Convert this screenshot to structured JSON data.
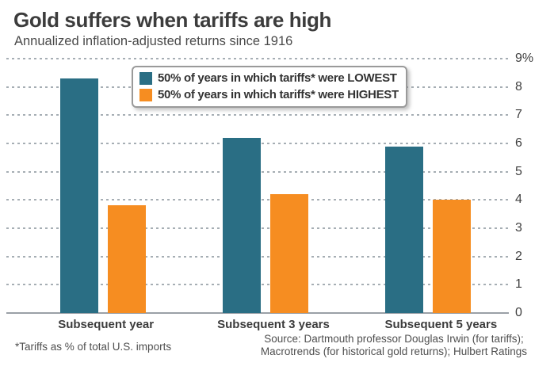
{
  "header": {
    "title": "Gold suffers when tariffs are high",
    "subtitle": "Annualized inflation-adjusted returns since 1916"
  },
  "chart_data": {
    "type": "bar",
    "title": "Gold suffers when tariffs are high",
    "subtitle": "Annualized inflation-adjusted returns since 1916",
    "categories": [
      "Subsequent year",
      "Subsequent 3 years",
      "Subsequent 5 years"
    ],
    "series": [
      {
        "name": "50% of years in which tariffs* were LOWEST",
        "color": "#2a6e84",
        "values": [
          8.3,
          6.2,
          5.9
        ]
      },
      {
        "name": "50% of years in which tariffs* were HIGHEST",
        "color": "#f68d21",
        "values": [
          3.8,
          4.2,
          4.0
        ]
      }
    ],
    "xlabel": "",
    "ylabel": "",
    "ylim": [
      0,
      9
    ],
    "y_ticks": [
      {
        "v": 9,
        "label": "9%"
      },
      {
        "v": 8,
        "label": "8"
      },
      {
        "v": 7,
        "label": "7"
      },
      {
        "v": 6,
        "label": "6"
      },
      {
        "v": 5,
        "label": "5"
      },
      {
        "v": 4,
        "label": "4"
      },
      {
        "v": 3,
        "label": "3"
      },
      {
        "v": 2,
        "label": "2"
      },
      {
        "v": 1,
        "label": "1"
      },
      {
        "v": 0,
        "label": "0"
      }
    ],
    "grid": "horizontal-dotted",
    "legend_position": "top-center"
  },
  "footer": {
    "footnote": "*Tariffs as % of total U.S. imports",
    "source_line1": "Source: Dartmouth professor Douglas Irwin (for tariffs);",
    "source_line2": "Macrotrends (for historical gold returns); Hulbert Ratings"
  },
  "colors": {
    "lowest": "#2a6e84",
    "highest": "#f68d21",
    "axis_line": "#9aa0a6",
    "grid_dot": "#a6aeb4",
    "title_text": "#3c3c3c",
    "footer_text": "#4f4f4f"
  }
}
